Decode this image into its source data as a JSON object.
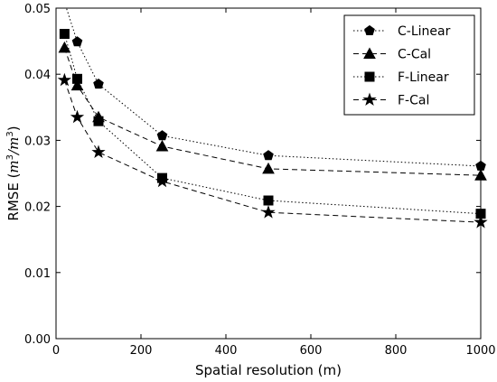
{
  "chart_data": {
    "type": "line",
    "xlabel": "Spatial resolution (m)",
    "ylabel_prefix": "RMSE (",
    "ylabel_units_num": "m",
    "ylabel_units_exp": "3",
    "ylabel_units_sep": "/",
    "ylabel_units_den": "m",
    "ylabel_units_exp2": "3",
    "ylabel_suffix": ")",
    "xlim": [
      0,
      1000
    ],
    "ylim": [
      0.0,
      0.05
    ],
    "xticks": [
      0,
      200,
      400,
      600,
      800,
      1000
    ],
    "xtick_labels": [
      "0",
      "200",
      "400",
      "600",
      "800",
      "1000"
    ],
    "yticks": [
      0.0,
      0.01,
      0.02,
      0.03,
      0.04,
      0.05
    ],
    "ytick_labels": [
      "0.00",
      "0.01",
      "0.02",
      "0.03",
      "0.04",
      "0.05"
    ],
    "legend_position": "top-right",
    "series": [
      {
        "name": "C-Linear",
        "marker": "pentagon",
        "line": "dotted",
        "x": [
          50,
          100,
          250,
          500,
          1000
        ],
        "y": [
          0.0449,
          0.0385,
          0.0307,
          0.0277,
          0.0261
        ],
        "leading_line_from": [
          12,
          0.0525
        ]
      },
      {
        "name": "C-Cal",
        "marker": "triangle",
        "line": "dashed",
        "x": [
          20,
          50,
          100,
          250,
          500,
          1000
        ],
        "y": [
          0.044,
          0.0383,
          0.0335,
          0.0291,
          0.0257,
          0.0247
        ]
      },
      {
        "name": "F-Linear",
        "marker": "square",
        "line": "dotted",
        "x": [
          20,
          50,
          100,
          250,
          500,
          1000
        ],
        "y": [
          0.0461,
          0.0393,
          0.0329,
          0.0243,
          0.0209,
          0.0189
        ]
      },
      {
        "name": "F-Cal",
        "marker": "star",
        "line": "dashed",
        "x": [
          20,
          50,
          100,
          250,
          500,
          1000
        ],
        "y": [
          0.0391,
          0.0335,
          0.0282,
          0.0238,
          0.0191,
          0.0176
        ]
      }
    ]
  }
}
